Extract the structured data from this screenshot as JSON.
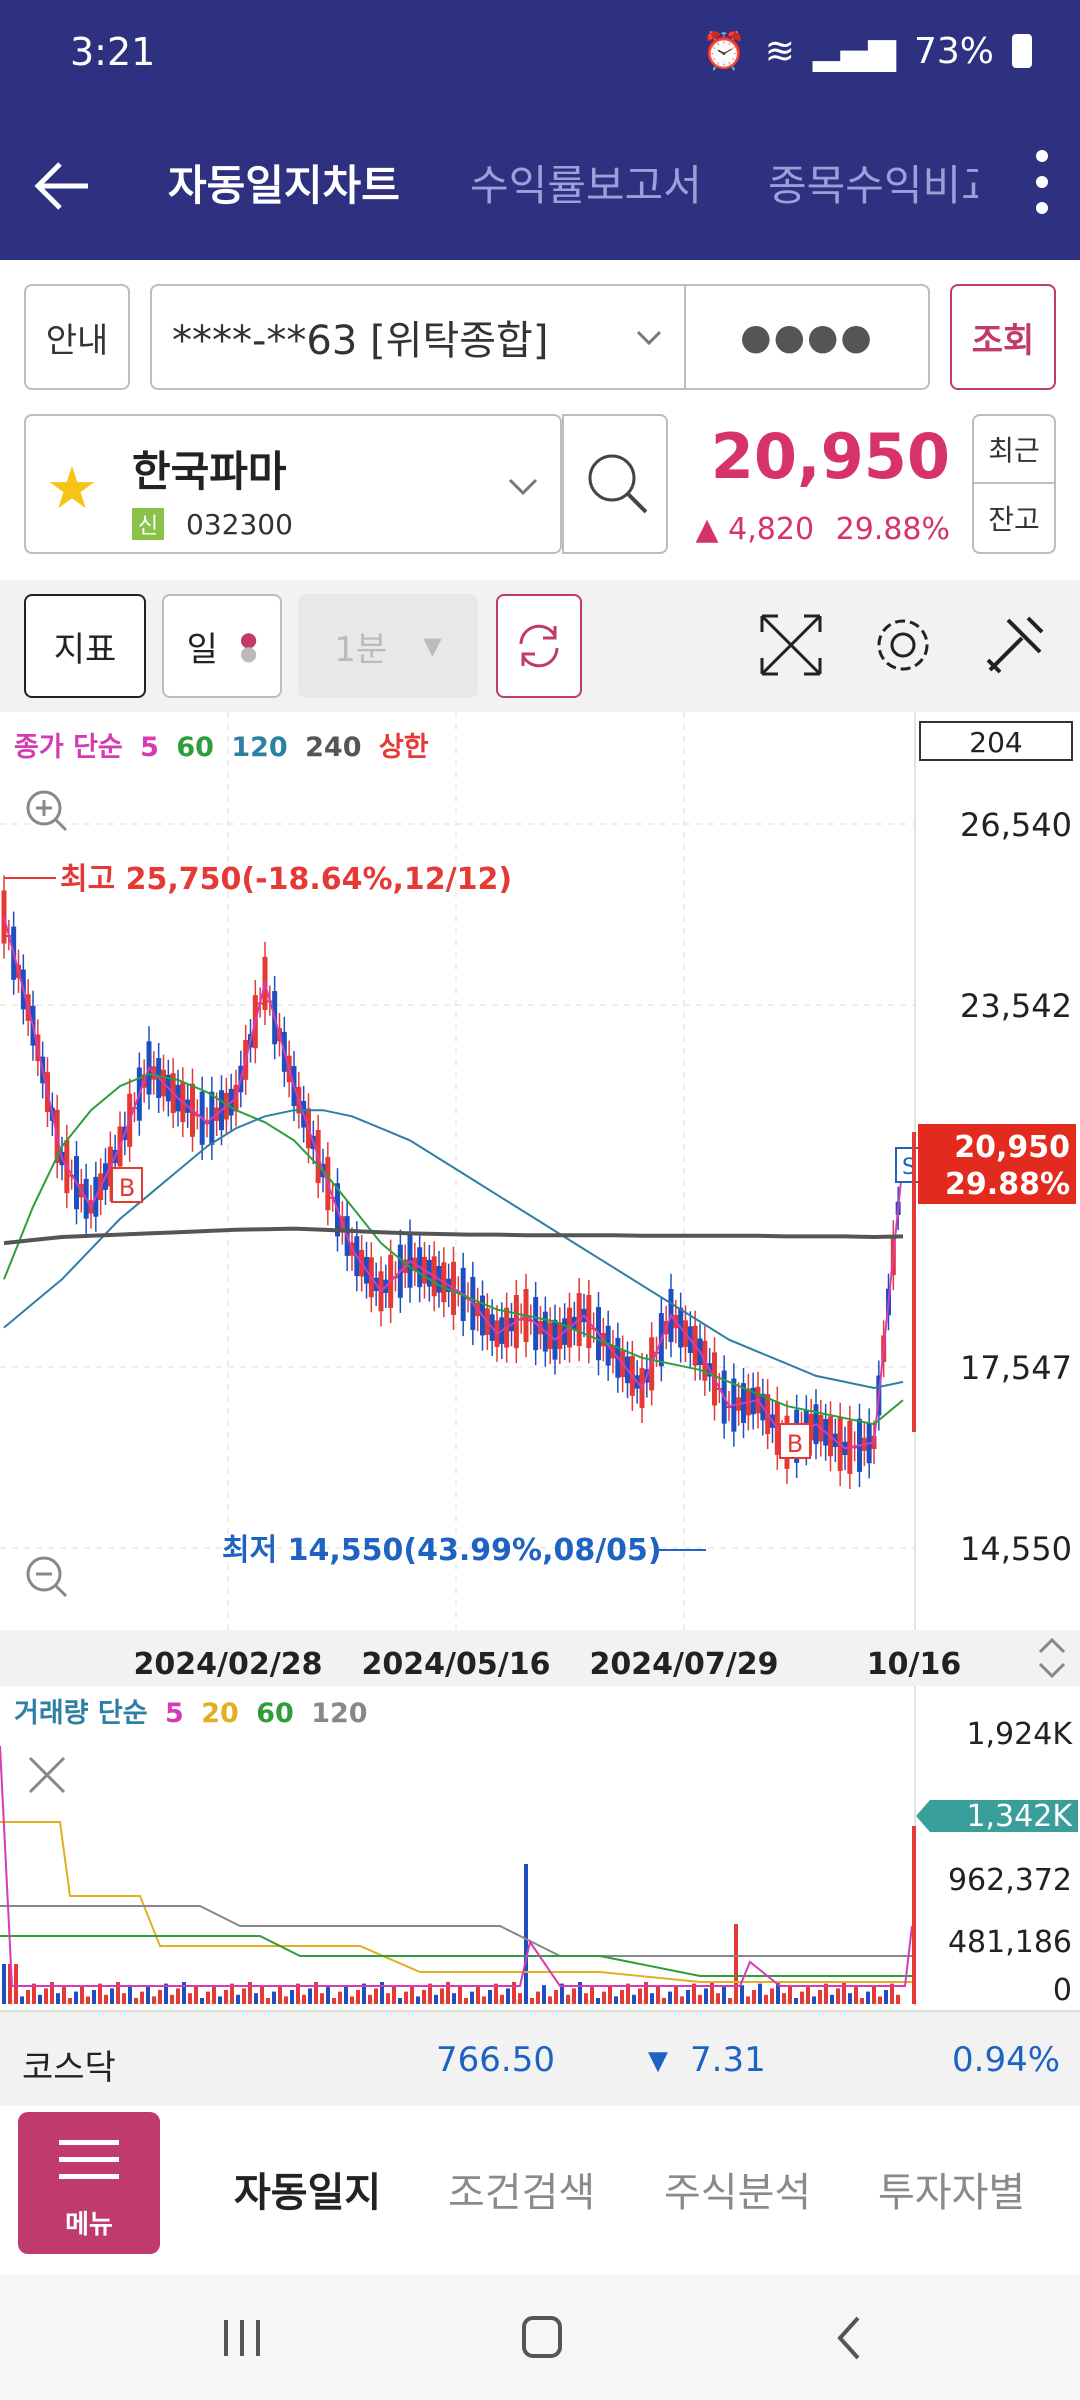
{
  "status": {
    "time": "3:21",
    "battery": "73%"
  },
  "appbar": {
    "tabs": [
      "자동일지차트",
      "수익률보고서",
      "종목수익비교"
    ]
  },
  "account": {
    "info_label": "안내",
    "number": "****-**63 [위탁종합]",
    "password_mask": "●●●●",
    "query_label": "조회"
  },
  "stock": {
    "name": "한국파마",
    "badge": "신",
    "code": "032300",
    "price": "20,950",
    "change": "4,820",
    "change_pct": "29.88%",
    "recent_label": "최근",
    "balance_label": "잔고"
  },
  "toolbar": {
    "indicator_label": "지표",
    "period_label": "일",
    "minute_label": "1분"
  },
  "chart": {
    "legend": {
      "prefix": "종가 단순",
      "ma": [
        "5",
        "60",
        "120",
        "240"
      ],
      "limit": "상한"
    },
    "count": "204",
    "high_annotation": "최고 25,750(-18.64%,12/12)",
    "low_annotation": "최저 14,550(43.99%,08/05)",
    "current_price": "20,950",
    "current_pct": "29.88%",
    "colors": {
      "up": "#e53935",
      "down": "#1e4fc2",
      "ma5": "#d63bb4",
      "ma60": "#2e9e3c",
      "ma120": "#2d7fa3",
      "ma240": "#555555"
    }
  },
  "chart_data": {
    "type": "line",
    "x_ticks": [
      "2024/02/28",
      "2024/05/16",
      "2024/07/29",
      "10/16"
    ],
    "y_ticks": [
      "26,540",
      "23,542",
      "17,547",
      "14,550"
    ],
    "ylim": [
      14550,
      26540
    ],
    "series": [
      {
        "name": "5",
        "values": [
          25000,
          23200,
          21000,
          20200,
          21200,
          22500,
          22000,
          21600,
          22000,
          23900,
          22200,
          20800,
          19500,
          18800,
          19300,
          19000,
          18700,
          18100,
          18400,
          18000,
          18400,
          17800,
          17200,
          18400,
          17800,
          16900,
          17000,
          16300,
          16600,
          16200,
          16300,
          20950
        ]
      },
      {
        "name": "60",
        "values": [
          19000,
          20200,
          21200,
          21800,
          22200,
          22400,
          22300,
          22100,
          21800,
          21600,
          21300,
          20800,
          20200,
          19600,
          19200,
          18900,
          18700,
          18500,
          18400,
          18300,
          18100,
          17900,
          17700,
          17600,
          17500,
          17300,
          17100,
          16900,
          16800,
          16700,
          16600,
          17000
        ]
      },
      {
        "name": "120",
        "values": [
          18200,
          18600,
          19000,
          19500,
          20000,
          20400,
          20800,
          21200,
          21500,
          21700,
          21800,
          21800,
          21700,
          21500,
          21300,
          21000,
          20700,
          20400,
          20100,
          19800,
          19500,
          19200,
          18900,
          18600,
          18300,
          18000,
          17800,
          17600,
          17400,
          17300,
          17200,
          17300
        ]
      },
      {
        "name": "240",
        "values": [
          19600,
          19650,
          19700,
          19720,
          19740,
          19760,
          19780,
          19800,
          19820,
          19830,
          19840,
          19820,
          19800,
          19780,
          19760,
          19750,
          19740,
          19740,
          19730,
          19730,
          19730,
          19730,
          19720,
          19720,
          19720,
          19720,
          19720,
          19710,
          19710,
          19710,
          19700,
          19710
        ]
      }
    ],
    "volume": {
      "legend": {
        "prefix": "거래량 단순",
        "ma": [
          "5",
          "20",
          "60",
          "120"
        ]
      },
      "y_ticks": [
        "1,924K",
        "962,372",
        "481,186",
        "0"
      ],
      "current": "1,342K"
    }
  },
  "kosdaq": {
    "name": "코스닥",
    "value": "766.50",
    "change": "7.31",
    "pct": "0.94%"
  },
  "bottomnav": {
    "menu_label": "메뉴",
    "items": [
      "자동일지",
      "조건검색",
      "주식분석",
      "투자자별"
    ]
  }
}
